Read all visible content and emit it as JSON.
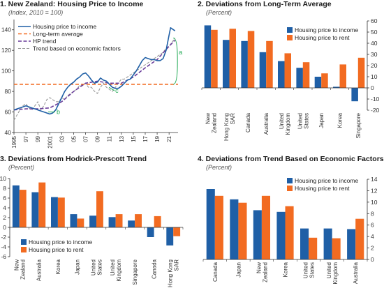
{
  "chart_data": [
    {
      "id": "p1",
      "type": "line",
      "title": "1. New Zealand: Housing Price to Income",
      "subtitle": "(Index, 2010 = 100)",
      "xlim": [
        1995,
        2022.5
      ],
      "ylim": [
        40,
        150
      ],
      "yticks": [
        40,
        60,
        80,
        100,
        120,
        140
      ],
      "xticks": [
        1995,
        1997,
        1999,
        2001,
        2003,
        2005,
        2007,
        2009,
        2011,
        2013,
        2015,
        2017,
        2019,
        2021
      ],
      "xticklabels": [
        "1995",
        "97",
        "99",
        "2001",
        "03",
        "05",
        "07",
        "09",
        "11",
        "13",
        "15",
        "17",
        "19",
        "21"
      ],
      "legend": [
        "Housing price to income",
        "Long-term average",
        "HP trend",
        "Trend based on economic factors"
      ],
      "colors": {
        "income": "#1f5fa6",
        "avg": "#f26b21",
        "hp": "#6a3d9a",
        "econ": "#999999",
        "annot": "#22aa55"
      },
      "long_term_average": 87,
      "series": [
        {
          "name": "Housing price to income",
          "x": [
            1995,
            1995.5,
            1996,
            1996.5,
            1997,
            1997.5,
            1998,
            1998.5,
            1999,
            1999.5,
            2000,
            2000.5,
            2001,
            2001.5,
            2002,
            2002.5,
            2003,
            2003.5,
            2004,
            2004.5,
            2005,
            2005.5,
            2006,
            2006.5,
            2007,
            2007.5,
            2008,
            2008.5,
            2009,
            2009.5,
            2010,
            2010.5,
            2011,
            2011.5,
            2012,
            2012.5,
            2013,
            2013.5,
            2014,
            2014.5,
            2015,
            2015.5,
            2016,
            2016.5,
            2017,
            2017.5,
            2018,
            2018.5,
            2019,
            2019.5,
            2020,
            2020.5,
            2021,
            2021.25,
            2021.5,
            2022
          ],
          "y": [
            62,
            63,
            64,
            65,
            66,
            65,
            64,
            63,
            62,
            61,
            60,
            59,
            58,
            59,
            62,
            68,
            74,
            80,
            84,
            87,
            89,
            92,
            94,
            97,
            98,
            95,
            91,
            88,
            89,
            93,
            91,
            90,
            87,
            84,
            83,
            83,
            85,
            88,
            91,
            92,
            96,
            100,
            105,
            110,
            113,
            112,
            111,
            111,
            110,
            110,
            112,
            120,
            135,
            142,
            141,
            139
          ]
        },
        {
          "name": "HP trend",
          "x": [
            1995,
            1997,
            1999,
            2001,
            2003,
            2005,
            2007,
            2009,
            2011,
            2013,
            2015,
            2017,
            2019,
            2021,
            2022
          ],
          "y": [
            62,
            63,
            63,
            64,
            70,
            80,
            88,
            90,
            88,
            88,
            94,
            103,
            111,
            124,
            130
          ]
        },
        {
          "name": "Trend based on economic factors",
          "x": [
            1995,
            1995.5,
            1996,
            1996.5,
            1997,
            1997.5,
            1998,
            1998.5,
            1999,
            1999.5,
            2000,
            2000.5,
            2001,
            2001.5,
            2002,
            2002.5,
            2003,
            2003.5,
            2004,
            2004.5,
            2005,
            2005.5,
            2006,
            2006.5,
            2007,
            2007.5,
            2008,
            2008.5,
            2009,
            2009.5,
            2010,
            2010.5,
            2011,
            2011.5,
            2012,
            2012.5,
            2013,
            2013.5,
            2014,
            2014.5,
            2015,
            2015.5,
            2016,
            2016.5,
            2017,
            2017.5,
            2018,
            2018.5,
            2019,
            2019.5,
            2020,
            2020.5,
            2021,
            2021.5,
            2022
          ],
          "y": [
            52,
            57,
            62,
            66,
            68,
            64,
            62,
            66,
            70,
            62,
            66,
            72,
            74,
            72,
            70,
            70,
            74,
            72,
            76,
            78,
            80,
            82,
            86,
            86,
            88,
            84,
            84,
            80,
            78,
            84,
            88,
            84,
            82,
            80,
            84,
            88,
            92,
            92,
            94,
            96,
            98,
            100,
            102,
            104,
            106,
            108,
            110,
            112,
            114,
            116,
            118,
            122,
            124,
            128,
            132
          ]
        }
      ],
      "annotations": [
        {
          "label": "a",
          "x": 2022.6,
          "y": 118
        },
        {
          "label": "b",
          "x": 2001.6,
          "y": 63
        },
        {
          "label": "c",
          "x": 2011.6,
          "y": 80
        }
      ]
    },
    {
      "id": "p2",
      "type": "bar",
      "title": "2. Deviations from Long-Term Average",
      "subtitle": "(Percent)",
      "categories": [
        "New Zealand",
        "Hong Kong SAR",
        "Canada",
        "Australia",
        "United Kingdom",
        "United States",
        "Japan",
        "Korea",
        "Singapore"
      ],
      "category_labels": [
        [
          "New",
          "Zealand"
        ],
        [
          "Hong Kong",
          "SAR"
        ],
        [
          "Canada"
        ],
        [
          "Australia"
        ],
        [
          "United",
          "Kingdom"
        ],
        [
          "United",
          "States"
        ],
        [
          "Japan"
        ],
        [
          "Korea"
        ],
        [
          "Singapore"
        ]
      ],
      "series": [
        {
          "name": "Housing price to income",
          "values": [
            56,
            43,
            42,
            32,
            24,
            18,
            10,
            1,
            -12
          ],
          "color": "#1f5fa6"
        },
        {
          "name": "Housing price to rent",
          "values": [
            52,
            53,
            51,
            42,
            31,
            23,
            13,
            21,
            27
          ],
          "color": "#f26b21"
        }
      ],
      "ylim": [
        -20,
        60
      ],
      "yticks": [
        -20,
        -10,
        0,
        10,
        20,
        30,
        40,
        50,
        60
      ],
      "yaxis": "right",
      "legend_position": "top-right"
    },
    {
      "id": "p3",
      "type": "bar",
      "title": "3. Deviations from Hodrick-Prescott Trend",
      "subtitle": "(Percent)",
      "categories": [
        "New Zealand",
        "Australia",
        "Korea",
        "Japan",
        "United States",
        "United Kingdom",
        "Singapore",
        "Canada",
        "Hong Kong SAR"
      ],
      "category_labels": [
        [
          "New",
          "Zealand"
        ],
        [
          "Australia"
        ],
        [
          "Korea"
        ],
        [
          "Japan"
        ],
        [
          "United",
          "States"
        ],
        [
          "United",
          "Kingdom"
        ],
        [
          "Singapore"
        ],
        [
          "Canada"
        ],
        [
          "Hong Kong",
          "SAR"
        ]
      ],
      "series": [
        {
          "name": "Housing price to income",
          "values": [
            8.6,
            7.2,
            6.2,
            2.7,
            2.4,
            2.1,
            1.4,
            -2.0,
            -3.7
          ],
          "color": "#1f5fa6"
        },
        {
          "name": "Housing price to rent",
          "values": [
            7.7,
            9.2,
            6.1,
            1.8,
            7.4,
            2.7,
            2.7,
            2.3,
            -1.8
          ],
          "color": "#f26b21"
        }
      ],
      "ylim": [
        -6,
        10
      ],
      "yticks": [
        -6,
        -4,
        -2,
        0,
        2,
        4,
        6,
        8,
        10
      ],
      "yaxis": "left",
      "legend_position": "bottom-left"
    },
    {
      "id": "p4",
      "type": "bar",
      "title": "4. Deviations from Trend Based on Economic Factors",
      "subtitle": "(Percent)",
      "categories": [
        "Canada",
        "Japan",
        "New Zealand",
        "Korea",
        "United States",
        "United Kingdom",
        "Australia"
      ],
      "category_labels": [
        [
          "Canada"
        ],
        [
          "Japan"
        ],
        [
          "New",
          "Zealand"
        ],
        [
          "Korea"
        ],
        [
          "United",
          "States"
        ],
        [
          "United",
          "Kingdom"
        ],
        [
          "Australia"
        ]
      ],
      "series": [
        {
          "name": "Housing price to income",
          "values": [
            12.3,
            10.5,
            8.6,
            8.3,
            5.4,
            5.4,
            5.3
          ],
          "color": "#1f5fa6"
        },
        {
          "name": "Housing price to rent",
          "values": [
            11.1,
            9.9,
            11.1,
            9.3,
            3.8,
            3.7,
            7.1
          ],
          "color": "#f26b21"
        }
      ],
      "ylim": [
        0,
        14
      ],
      "yticks": [
        0,
        2,
        4,
        6,
        8,
        10,
        12,
        14
      ],
      "yaxis": "right",
      "legend_position": "top-right"
    }
  ]
}
